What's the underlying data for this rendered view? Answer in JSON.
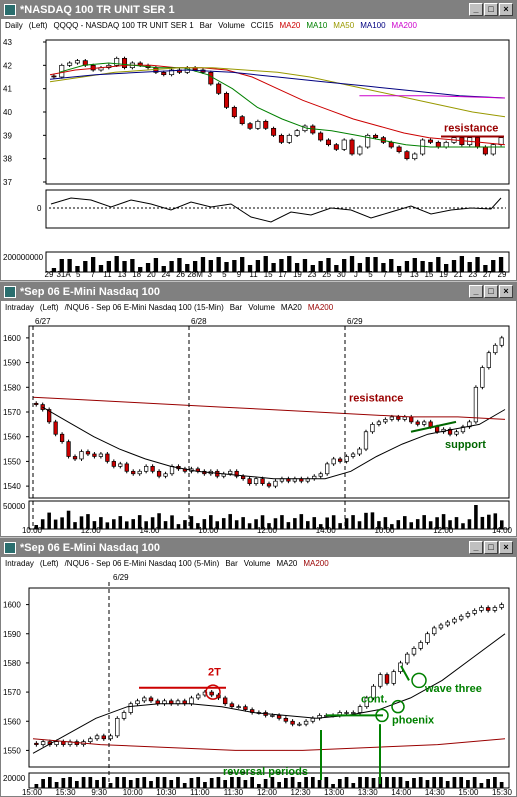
{
  "windows": [
    {
      "id": "w1",
      "title": "*NASDAQ 100 TR UNIT SER 1",
      "info": [
        {
          "text": "Daily",
          "color": "#000000"
        },
        {
          "text": "(Left)",
          "color": "#000000"
        },
        {
          "text": "QQQQ - NASDAQ 100 TR UNIT SER 1",
          "color": "#000000"
        },
        {
          "text": "Bar",
          "color": "#000000"
        },
        {
          "text": "Volume",
          "color": "#000000"
        },
        {
          "text": "CCI15",
          "color": "#000000"
        },
        {
          "text": "MA20",
          "color": "#cc0000"
        },
        {
          "text": "MA10",
          "color": "#008000"
        },
        {
          "text": "MA50",
          "color": "#999900"
        },
        {
          "text": "MA100",
          "color": "#000080"
        },
        {
          "text": "MA200",
          "color": "#cc00cc"
        }
      ],
      "y_ticks": [
        "43",
        "42",
        "41",
        "40",
        "39",
        "38",
        "37"
      ],
      "y_range": [
        37,
        43
      ],
      "cci_label": "0",
      "vol_label": "200000000",
      "x_labels": [
        "29",
        "31A",
        "5",
        "7",
        "11",
        "13",
        "18",
        "20",
        "24",
        "26",
        "28M",
        "3",
        "5",
        "9",
        "11",
        "15",
        "17",
        "19",
        "23",
        "25",
        "30",
        "J",
        "5",
        "7",
        "9",
        "13",
        "15",
        "19",
        "21",
        "23",
        "27",
        "29"
      ],
      "annotations": [
        {
          "text": "resistance",
          "color": "#990000"
        }
      ]
    },
    {
      "id": "w2",
      "title": "*Sep 06  E-Mini Nasdaq 100",
      "info": [
        {
          "text": "Intraday",
          "color": "#000000"
        },
        {
          "text": "(Left)",
          "color": "#000000"
        },
        {
          "text": "/NQU6 - Sep 06  E-Mini Nasdaq 100 (15-Min)",
          "color": "#000000"
        },
        {
          "text": "Bar",
          "color": "#000000"
        },
        {
          "text": "Volume",
          "color": "#000000"
        },
        {
          "text": "MA20",
          "color": "#000000"
        },
        {
          "text": "MA200",
          "color": "#990000"
        }
      ],
      "y_ticks": [
        "1600",
        "1590",
        "1580",
        "1570",
        "1560",
        "1550",
        "1540"
      ],
      "y_range": [
        1536,
        1604
      ],
      "vol_label": "50000",
      "date_labels": [
        "6/27",
        "6/28",
        "6/29"
      ],
      "x_labels": [
        "10:00",
        "12:00",
        "14:00",
        "10:00",
        "12:00",
        "14:00",
        "10:00",
        "12:00",
        "14:00"
      ],
      "annotations": [
        {
          "text": "resistance",
          "color": "#990000"
        },
        {
          "text": "support",
          "color": "#006600"
        }
      ]
    },
    {
      "id": "w3",
      "title": "*Sep 06  E-Mini Nasdaq 100",
      "info": [
        {
          "text": "Intraday",
          "color": "#000000"
        },
        {
          "text": "(Left)",
          "color": "#000000"
        },
        {
          "text": "/NQU6 - Sep 06  E-Mini Nasdaq 100 (5-Min)",
          "color": "#000000"
        },
        {
          "text": "Bar",
          "color": "#000000"
        },
        {
          "text": "Volume",
          "color": "#000000"
        },
        {
          "text": "MA20",
          "color": "#000000"
        },
        {
          "text": "MA200",
          "color": "#990000"
        }
      ],
      "y_ticks": [
        "1600",
        "1590",
        "1580",
        "1570",
        "1560",
        "1550"
      ],
      "y_range": [
        1545,
        1605
      ],
      "vol_label": "20000",
      "date_labels": [
        "6/29"
      ],
      "x_labels": [
        "15:00",
        "15:30",
        "9:30",
        "10:00",
        "10:30",
        "11:00",
        "11:30",
        "12:00",
        "12:30",
        "13:00",
        "13:30",
        "14:00",
        "14:30",
        "15:00",
        "15:30"
      ],
      "annotations": [
        {
          "text": "2T",
          "color": "#cc0000"
        },
        {
          "text": "cont.",
          "color": "#008000"
        },
        {
          "text": "wave three",
          "color": "#008000"
        },
        {
          "text": "phoenix",
          "color": "#008000"
        },
        {
          "text": "reversal periods",
          "color": "#008000"
        }
      ]
    }
  ],
  "chart_data": [
    {
      "type": "bar",
      "title": "*NASDAQ 100 TR UNIT SER 1",
      "period": "Daily",
      "ylim": [
        37,
        43
      ],
      "series": [
        {
          "name": "Price (close)",
          "values": [
            41.5,
            42.0,
            42.1,
            42.2,
            42.0,
            41.8,
            41.9,
            42.0,
            42.3,
            41.9,
            42.1,
            42.0,
            41.9,
            41.7,
            41.6,
            41.8,
            41.7,
            41.9,
            41.8,
            41.7,
            41.2,
            40.8,
            40.2,
            39.8,
            39.5,
            39.3,
            39.6,
            39.3,
            39.0,
            38.7,
            39.0,
            39.2,
            39.4,
            39.1,
            38.8,
            38.6,
            38.4,
            38.8,
            38.2,
            38.5,
            39.0,
            38.9,
            38.7,
            38.5,
            38.3,
            38.0,
            38.2,
            38.8,
            38.7,
            38.5,
            38.7,
            38.9,
            38.6,
            38.9,
            38.5,
            38.2,
            38.6,
            38.9
          ]
        },
        {
          "name": "MA20",
          "values": [
            41.6,
            41.8,
            41.9,
            42.0,
            42.0,
            41.9,
            41.9,
            41.8,
            41.5,
            41.0,
            40.5,
            40.1,
            39.7,
            39.4,
            39.1,
            38.9,
            38.8,
            38.7,
            38.6
          ]
        },
        {
          "name": "MA10",
          "values": [
            41.7,
            42.0,
            42.1,
            42.0,
            41.9,
            41.9,
            41.6,
            41.0,
            40.2,
            39.7,
            39.3,
            39.2,
            39.0,
            38.8,
            38.6,
            38.5,
            38.5,
            38.5,
            38.5
          ]
        },
        {
          "name": "MA50",
          "values": [
            41.3,
            41.5,
            41.7,
            41.8,
            41.9,
            41.9,
            41.8,
            41.7,
            41.5,
            41.2,
            40.9,
            40.6,
            40.3,
            40.0,
            39.8
          ]
        },
        {
          "name": "MA100",
          "values": [
            41.4,
            41.6,
            41.7,
            41.8,
            41.7,
            41.5,
            41.3,
            41.1,
            40.9,
            40.7,
            40.6
          ]
        },
        {
          "name": "MA200",
          "values": [
            40.7,
            40.7,
            40.6
          ]
        }
      ],
      "annotations": [
        "resistance"
      ]
    },
    {
      "type": "bar",
      "title": "/NQU6 - Sep 06  E-Mini Nasdaq 100 (15-Min)",
      "ylim": [
        1536,
        1604
      ],
      "sessions": [
        "6/27",
        "6/28",
        "6/29"
      ],
      "series": [
        {
          "name": "Price (close)",
          "values": [
            1573,
            1571,
            1566,
            1561,
            1558,
            1552,
            1551,
            1554,
            1553,
            1552,
            1553,
            1550,
            1548,
            1549,
            1546,
            1545,
            1546,
            1548,
            1546,
            1544,
            1545,
            1548,
            1547,
            1546,
            1547,
            1546,
            1545,
            1546,
            1544,
            1545,
            1546,
            1544,
            1543,
            1541,
            1543,
            1541,
            1540,
            1542,
            1543,
            1542,
            1543,
            1542,
            1543,
            1544,
            1545,
            1549,
            1551,
            1550,
            1552,
            1553,
            1555,
            1562,
            1565,
            1566,
            1567,
            1568,
            1567,
            1568,
            1566,
            1565,
            1566,
            1564,
            1562,
            1563,
            1561,
            1562,
            1564,
            1566,
            1580,
            1588,
            1594,
            1597,
            1600
          ]
        },
        {
          "name": "MA20",
          "values": [
            1572,
            1566,
            1560,
            1555,
            1551,
            1548,
            1546,
            1545,
            1544,
            1543,
            1543,
            1543,
            1546,
            1552,
            1557,
            1561,
            1563,
            1565,
            1571
          ]
        },
        {
          "name": "MA200",
          "values": [
            1576,
            1575,
            1574,
            1573,
            1572,
            1571,
            1570,
            1569,
            1568,
            1568,
            1567
          ]
        }
      ],
      "annotations": [
        "resistance",
        "support"
      ]
    },
    {
      "type": "bar",
      "title": "/NQU6 - Sep 06  E-Mini Nasdaq 100 (5-Min)",
      "ylim": [
        1545,
        1605
      ],
      "sessions": [
        "6/29"
      ],
      "series": [
        {
          "name": "Price (close)",
          "values": [
            1552,
            1553,
            1552,
            1553,
            1552,
            1553,
            1552,
            1553,
            1554,
            1555,
            1554,
            1555,
            1561,
            1563,
            1566,
            1567,
            1568,
            1567,
            1566,
            1567,
            1566,
            1567,
            1566,
            1568,
            1569,
            1570,
            1569,
            1568,
            1566,
            1565,
            1565,
            1564,
            1563,
            1563,
            1562,
            1562,
            1561,
            1560,
            1559,
            1559,
            1560,
            1561,
            1562,
            1562,
            1562,
            1563,
            1563,
            1563,
            1565,
            1568,
            1572,
            1576,
            1573,
            1577,
            1580,
            1583,
            1585,
            1587,
            1590,
            1592,
            1593,
            1594,
            1595,
            1596,
            1597,
            1598,
            1599,
            1598,
            1599,
            1600
          ]
        },
        {
          "name": "MA20",
          "values": [
            1549,
            1555,
            1561,
            1565,
            1566,
            1566,
            1565,
            1563,
            1562,
            1561,
            1562,
            1564,
            1568,
            1574,
            1582,
            1590
          ]
        },
        {
          "name": "MA200",
          "values": [
            1554,
            1552,
            1551,
            1550,
            1550,
            1551,
            1552,
            1554
          ]
        }
      ],
      "annotations": [
        "2T",
        "cont.",
        "wave three",
        "phoenix",
        "reversal periods"
      ]
    }
  ]
}
